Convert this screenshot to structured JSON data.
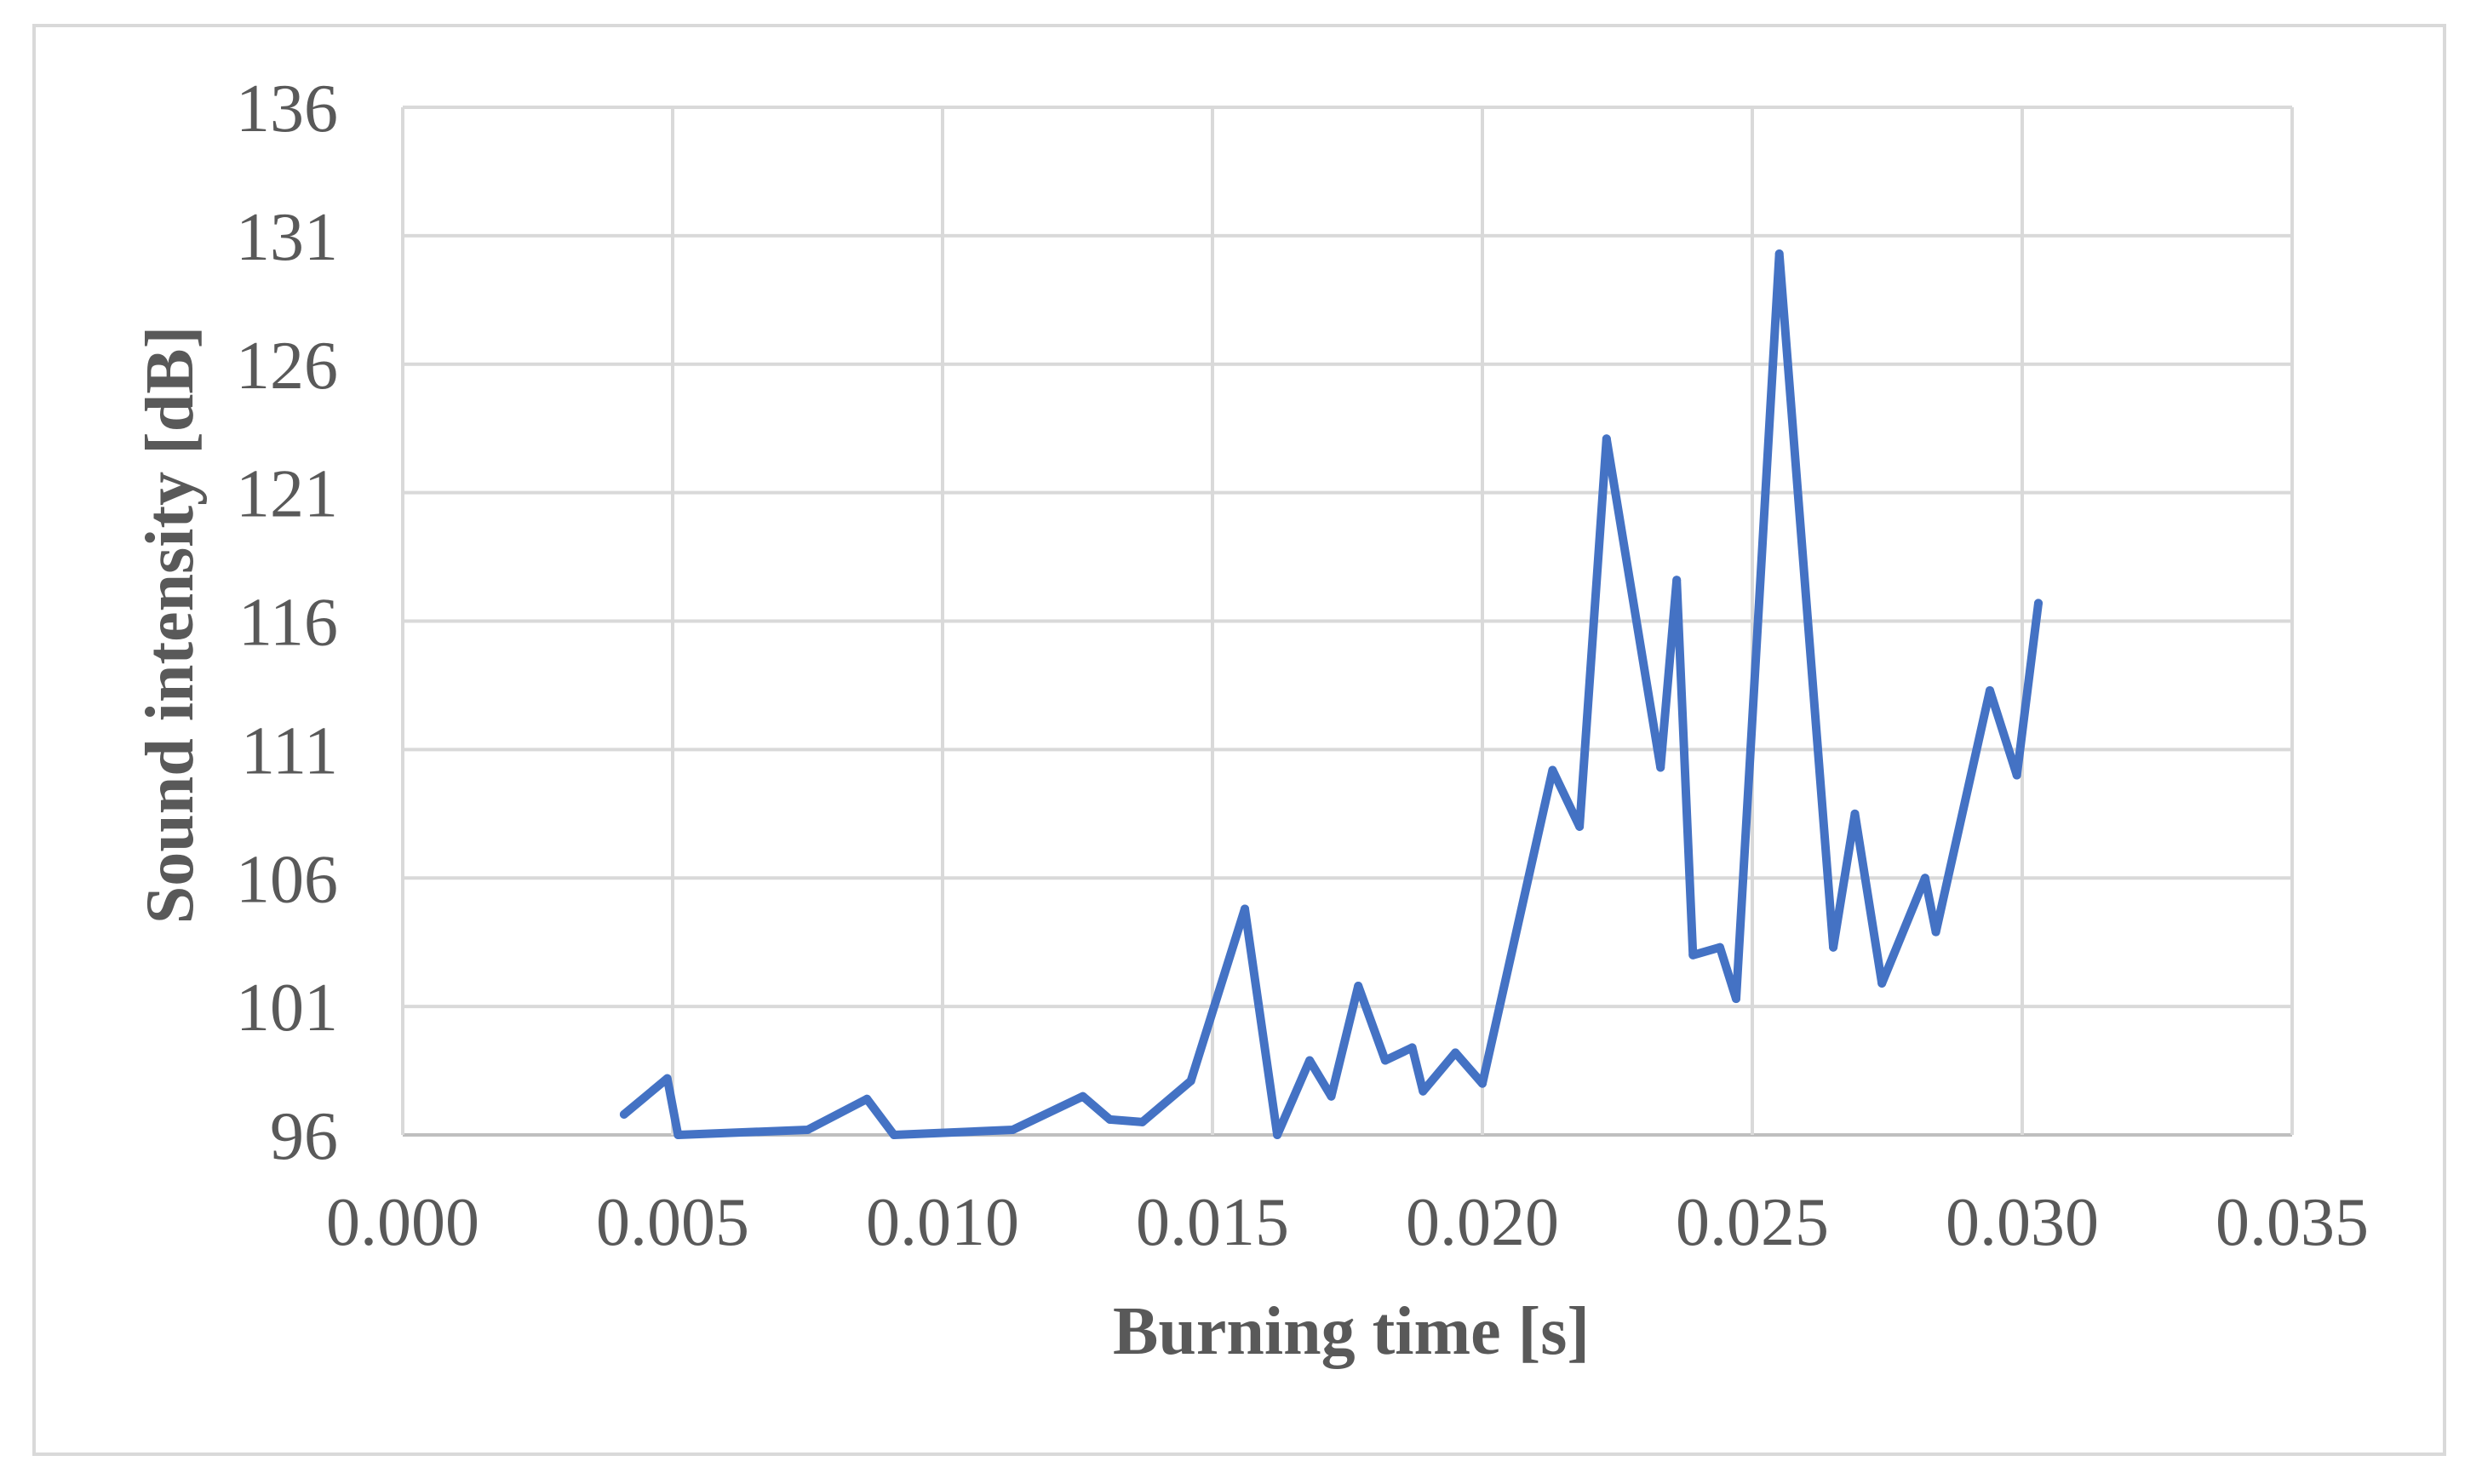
{
  "chart_data": {
    "type": "line",
    "title": "",
    "xlabel": "Burning time [s]",
    "ylabel": "Sound intensity [dB]",
    "xlim": [
      0.0,
      0.035
    ],
    "ylim": [
      96,
      136
    ],
    "x_ticks": [
      "0.000",
      "0.005",
      "0.010",
      "0.015",
      "0.020",
      "0.025",
      "0.030",
      "0.035"
    ],
    "y_ticks": [
      "96",
      "101",
      "106",
      "111",
      "116",
      "121",
      "126",
      "131",
      "136"
    ],
    "grid": true,
    "legend": "none",
    "line_color": "#4472c4",
    "series": [
      {
        "x": [
          0.0041,
          0.0049,
          0.0051,
          0.0075,
          0.0086,
          0.0091,
          0.0113,
          0.0126,
          0.0131,
          0.0137,
          0.0146,
          0.0156,
          0.0162,
          0.0168,
          0.0172,
          0.0177,
          0.0182,
          0.0187,
          0.0189,
          0.0195,
          0.02,
          0.0213,
          0.0218,
          0.0223,
          0.0233,
          0.0236,
          0.0239,
          0.0244,
          0.0247,
          0.0255,
          0.0265,
          0.0269,
          0.0274,
          0.0282,
          0.0284,
          0.0294,
          0.0299,
          0.0303
        ],
        "y": [
          96.8,
          98.2,
          96.0,
          96.2,
          97.4,
          96.0,
          96.2,
          97.5,
          96.6,
          96.5,
          98.1,
          104.8,
          96.0,
          98.9,
          97.5,
          101.8,
          98.9,
          99.4,
          97.7,
          99.2,
          98.0,
          110.2,
          108.0,
          123.1,
          110.3,
          117.6,
          103.0,
          103.3,
          101.3,
          130.3,
          103.3,
          108.5,
          101.9,
          106.0,
          103.9,
          113.3,
          110.0,
          116.7
        ]
      }
    ]
  }
}
